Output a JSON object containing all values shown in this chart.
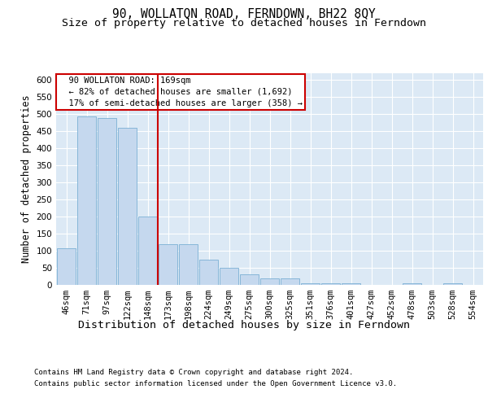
{
  "title": "90, WOLLATON ROAD, FERNDOWN, BH22 8QY",
  "subtitle": "Size of property relative to detached houses in Ferndown",
  "xlabel": "Distribution of detached houses by size in Ferndown",
  "ylabel": "Number of detached properties",
  "footer_line1": "Contains HM Land Registry data © Crown copyright and database right 2024.",
  "footer_line2": "Contains public sector information licensed under the Open Government Licence v3.0.",
  "categories": [
    "46sqm",
    "71sqm",
    "97sqm",
    "122sqm",
    "148sqm",
    "173sqm",
    "198sqm",
    "224sqm",
    "249sqm",
    "275sqm",
    "300sqm",
    "325sqm",
    "351sqm",
    "376sqm",
    "401sqm",
    "427sqm",
    "452sqm",
    "478sqm",
    "503sqm",
    "528sqm",
    "554sqm"
  ],
  "values": [
    107,
    493,
    490,
    460,
    200,
    120,
    120,
    75,
    50,
    30,
    20,
    20,
    5,
    5,
    5,
    0,
    0,
    5,
    0,
    5,
    0
  ],
  "bar_color": "#c5d8ee",
  "bar_edge_color": "#7aafd4",
  "ref_line_index": 5,
  "ref_line_color": "#cc0000",
  "annotation_text": "  90 WOLLATON ROAD: 169sqm\n  ← 82% of detached houses are smaller (1,692)\n  17% of semi-detached houses are larger (358) →",
  "annotation_box_color": "#cc0000",
  "ylim": [
    0,
    620
  ],
  "yticks": [
    0,
    50,
    100,
    150,
    200,
    250,
    300,
    350,
    400,
    450,
    500,
    550,
    600
  ],
  "background_color": "#ffffff",
  "plot_bg_color": "#dce9f5",
  "grid_color": "#ffffff",
  "title_fontsize": 10.5,
  "subtitle_fontsize": 9.5,
  "tick_fontsize": 7.5,
  "ylabel_fontsize": 8.5,
  "footer_fontsize": 6.5
}
